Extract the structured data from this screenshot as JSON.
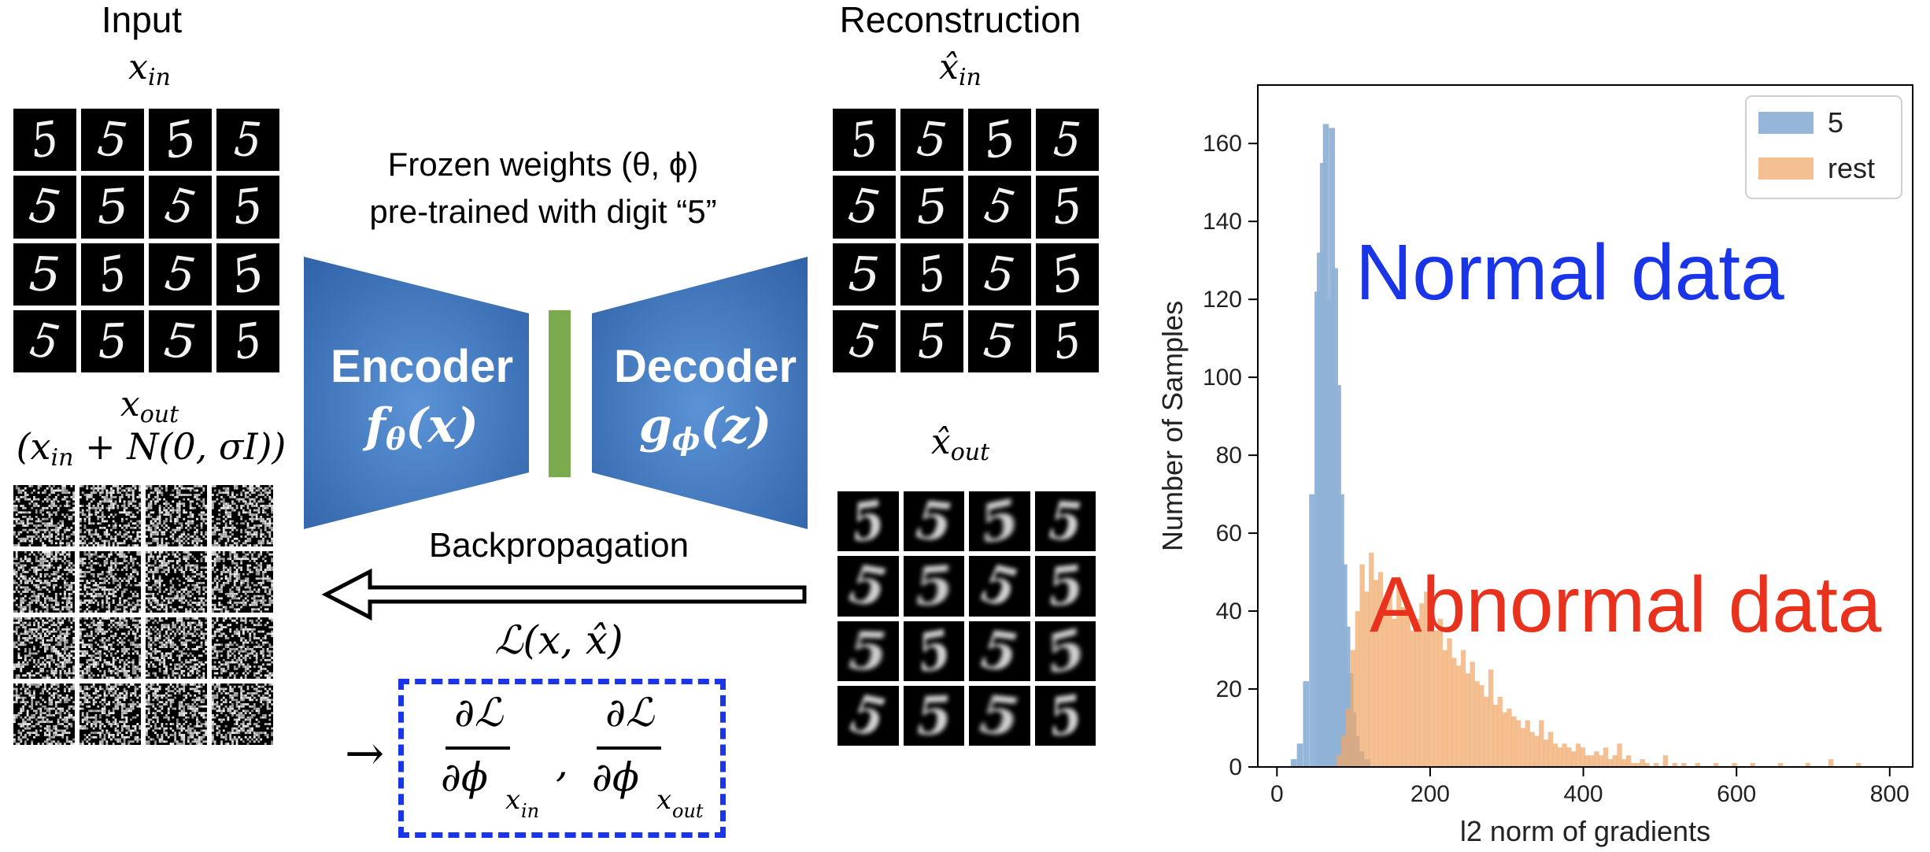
{
  "titles": {
    "input": "Input",
    "reconstruction": "Reconstruction",
    "frozen_line1": "Frozen weights (θ, ϕ)",
    "frozen_line2": "pre-trained with digit “5”",
    "backprop": "Backpropagation"
  },
  "math": {
    "x_in": "x",
    "x_in_sub": "in",
    "x_out": "x",
    "x_out_sub": "out",
    "x_out_def": "(x",
    "x_out_def_sub": "in",
    "x_out_def_rest": " + N(0, σI))",
    "xhat_in": "x̂",
    "xhat_in_sub": "in",
    "xhat_out": "x̂",
    "xhat_out_sub": "out",
    "loss": "ℒ(x, x̂)",
    "grad_num": "∂ℒ",
    "grad_den": "∂ϕ",
    "grad_sub_in": "x",
    "grad_sub_in2": "in",
    "grad_sub_out": "x",
    "grad_sub_out2": "out",
    "comma": ","
  },
  "encoder": {
    "name": "Encoder",
    "func": "f",
    "func_sub": "θ",
    "func_arg": "(x)",
    "color": "#3f74b4"
  },
  "decoder": {
    "name": "Decoder",
    "func": "g",
    "func_sub": "ϕ",
    "func_arg": "(z)",
    "color": "#3f74b4"
  },
  "bottleneck_color": "#7caa4e",
  "digit_glyph": "5",
  "chart_data": {
    "type": "histogram",
    "xlabel": "l2 norm of gradients",
    "ylabel": "Number of Samples",
    "xlim": [
      -25,
      830
    ],
    "ylim": [
      0,
      175
    ],
    "xticks": [
      0,
      200,
      400,
      600,
      800
    ],
    "yticks": [
      0,
      20,
      40,
      60,
      80,
      100,
      120,
      140,
      160
    ],
    "legend_position": "top-right",
    "annotations": [
      {
        "text": "Normal data",
        "color": "#1a35e8"
      },
      {
        "text": "Abnormal data",
        "color": "#e8321e"
      }
    ],
    "series": [
      {
        "name": "5",
        "color": "#8fb2d6",
        "bin_width": 7.8,
        "bins": [
          [
            18,
            2
          ],
          [
            26,
            6
          ],
          [
            34,
            22
          ],
          [
            42,
            70
          ],
          [
            49,
            122
          ],
          [
            52,
            132
          ],
          [
            56,
            155
          ],
          [
            60,
            165
          ],
          [
            64,
            120
          ],
          [
            68,
            164
          ],
          [
            72,
            128
          ],
          [
            76,
            98
          ],
          [
            80,
            70
          ],
          [
            84,
            52
          ],
          [
            88,
            36
          ],
          [
            92,
            24
          ],
          [
            96,
            14
          ],
          [
            100,
            8
          ],
          [
            106,
            4
          ],
          [
            114,
            2
          ]
        ]
      },
      {
        "name": "rest",
        "color": "#f0a868",
        "bin_width": 6.5,
        "bins": [
          [
            78,
            3
          ],
          [
            84,
            8
          ],
          [
            90,
            15
          ],
          [
            96,
            30
          ],
          [
            102,
            40
          ],
          [
            108,
            52
          ],
          [
            114,
            45
          ],
          [
            120,
            55
          ],
          [
            126,
            48
          ],
          [
            132,
            50
          ],
          [
            138,
            42
          ],
          [
            144,
            46
          ],
          [
            150,
            38
          ],
          [
            156,
            47
          ],
          [
            162,
            41
          ],
          [
            168,
            40
          ],
          [
            174,
            35
          ],
          [
            180,
            38
          ],
          [
            186,
            42
          ],
          [
            192,
            45
          ],
          [
            198,
            39
          ],
          [
            204,
            35
          ],
          [
            210,
            38
          ],
          [
            216,
            30
          ],
          [
            222,
            33
          ],
          [
            228,
            28
          ],
          [
            234,
            26
          ],
          [
            240,
            30
          ],
          [
            246,
            24
          ],
          [
            252,
            27
          ],
          [
            258,
            22
          ],
          [
            264,
            21
          ],
          [
            270,
            18
          ],
          [
            276,
            25
          ],
          [
            282,
            16
          ],
          [
            288,
            18
          ],
          [
            294,
            14
          ],
          [
            300,
            15
          ],
          [
            306,
            13
          ],
          [
            312,
            12
          ],
          [
            318,
            10
          ],
          [
            324,
            12
          ],
          [
            330,
            9
          ],
          [
            336,
            8
          ],
          [
            342,
            12
          ],
          [
            348,
            7
          ],
          [
            354,
            9
          ],
          [
            360,
            6
          ],
          [
            366,
            5
          ],
          [
            372,
            6
          ],
          [
            378,
            5
          ],
          [
            384,
            4
          ],
          [
            390,
            6
          ],
          [
            396,
            5
          ],
          [
            402,
            3
          ],
          [
            408,
            3
          ],
          [
            414,
            4
          ],
          [
            420,
            3
          ],
          [
            426,
            5
          ],
          [
            432,
            2
          ],
          [
            438,
            3
          ],
          [
            444,
            6
          ],
          [
            450,
            2
          ],
          [
            456,
            3
          ],
          [
            462,
            1
          ],
          [
            468,
            1
          ],
          [
            474,
            2
          ],
          [
            480,
            1
          ],
          [
            492,
            1
          ],
          [
            504,
            3
          ],
          [
            516,
            1
          ],
          [
            528,
            1
          ],
          [
            546,
            1
          ],
          [
            570,
            1
          ],
          [
            594,
            1
          ],
          [
            618,
            1
          ],
          [
            654,
            1
          ],
          [
            690,
            1
          ],
          [
            720,
            2
          ],
          [
            756,
            1
          ]
        ]
      }
    ]
  }
}
